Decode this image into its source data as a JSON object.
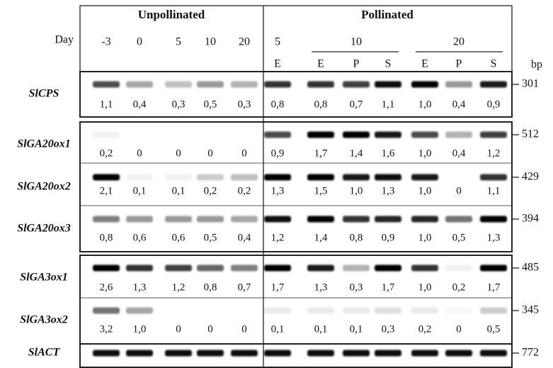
{
  "header": {
    "groups": [
      "Unpollinated",
      "Pollinated"
    ],
    "day_label": "Day",
    "days": [
      -3,
      0,
      5,
      10,
      20,
      5,
      10,
      20
    ],
    "lanes": [
      "E",
      "E",
      "P",
      "S",
      "E",
      "P",
      "S"
    ],
    "bp_label": "bp"
  },
  "rows": [
    {
      "gene": "SlCPS",
      "values": [
        "1,1",
        "0,4",
        "0,3",
        "0,5",
        "0,3",
        "0,8",
        "0,8",
        "0,7",
        "1,1",
        "1,0",
        "0,4",
        "0,9"
      ],
      "bp": 301
    },
    {
      "gene": "SlGA20ox1",
      "values": [
        "0,2",
        "0",
        "0",
        "0",
        "0",
        "0,9",
        "1,7",
        "1,4",
        "1,6",
        "1,0",
        "0,4",
        "1,2"
      ],
      "bp": 512
    },
    {
      "gene": "SlGA20ox2",
      "values": [
        "2,1",
        "0,1",
        "0,1",
        "0,2",
        "0,2",
        "1,3",
        "1,5",
        "1,0",
        "1,3",
        "1,0",
        "0",
        "1,1"
      ],
      "bp": 429
    },
    {
      "gene": "SlGA20ox3",
      "values": [
        "0,8",
        "0,6",
        "0,6",
        "0,5",
        "0,4",
        "1,2",
        "1,4",
        "0,8",
        "0,9",
        "1,0",
        "0,5",
        "1,3"
      ],
      "bp": 394
    },
    {
      "gene": "SlGA3ox1",
      "values": [
        "2,6",
        "1,3",
        "1,2",
        "0,8",
        "0,7",
        "1,7",
        "1,3",
        "0,3",
        "1,7",
        "1,0",
        "0,2",
        "1,7"
      ],
      "bp": 485
    },
    {
      "gene": "SlGA3ox2",
      "values": [
        "3,2",
        "1,0",
        "0",
        "0",
        "0",
        "0,1",
        "0,1",
        "0,1",
        "0,3",
        "0,2",
        "0",
        "0,5"
      ],
      "bp": 345
    },
    {
      "gene": "SlACT",
      "bp": 772
    }
  ]
}
